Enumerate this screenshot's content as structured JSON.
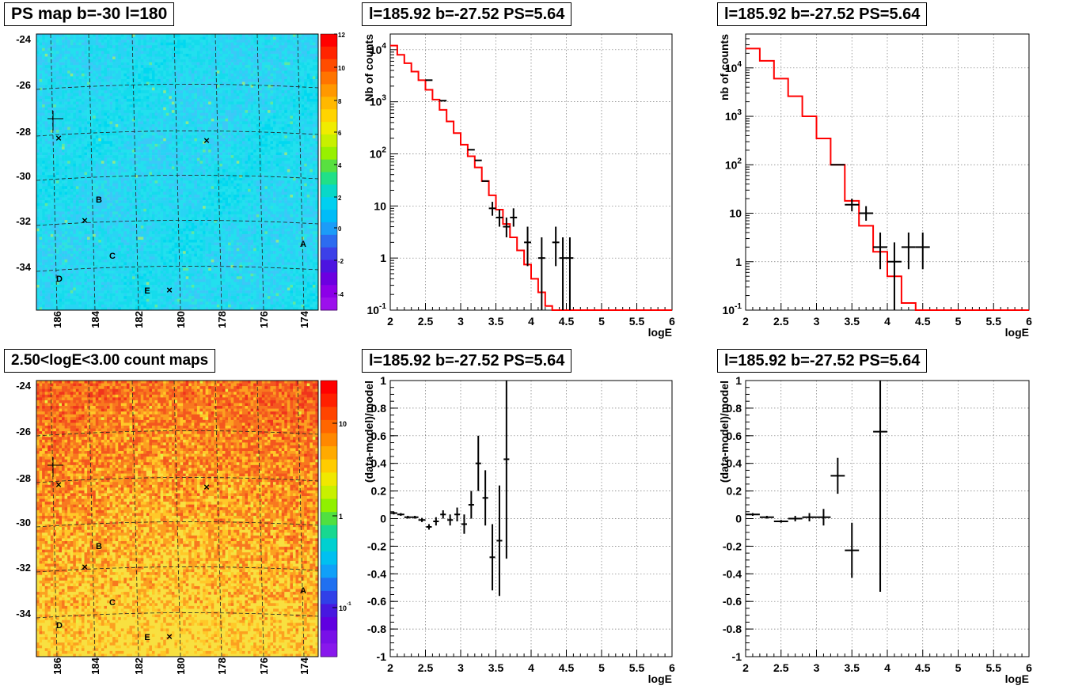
{
  "pads": [
    {
      "id": "map1",
      "title": "PS map b=-30 l=180"
    },
    {
      "id": "spec1",
      "title": "l=185.92 b=-27.52 PS=5.64"
    },
    {
      "id": "spec2",
      "title": "l=185.92 b=-27.52 PS=5.64"
    },
    {
      "id": "map2",
      "title": "2.50<logE<3.00 count maps"
    },
    {
      "id": "res1",
      "title": "l=185.92 b=-27.52 PS=5.64"
    },
    {
      "id": "res2",
      "title": "l=185.92 b=-27.52 PS=5.64"
    }
  ],
  "colors": {
    "model_line": "#ff0000",
    "data": "#000000",
    "grid": "#777777",
    "map1_base": "#22e0ee",
    "map2_base": "#f46a1e"
  },
  "chart_data": [
    {
      "type": "heatmap",
      "id": "map1",
      "title": "PS map b=-30 l=180",
      "x_ticks": [
        "186",
        "184",
        "182",
        "180",
        "178",
        "176",
        "174"
      ],
      "y_ticks": [
        "-24",
        "-26",
        "-28",
        "-30",
        "-32",
        "-34"
      ],
      "colorbar": {
        "scale": "linear",
        "ticks": [
          "12",
          "10",
          "8",
          "6",
          "4",
          "2",
          "0",
          "-2",
          "-4"
        ],
        "range": [
          -5,
          12
        ]
      },
      "sources": [
        "A",
        "B",
        "C",
        "D",
        "E"
      ],
      "dominant_value_range": [
        0,
        2
      ]
    },
    {
      "type": "line",
      "id": "spec1",
      "title": "l=185.92 b=-27.52 PS=5.64",
      "xlabel": "logE",
      "ylabel": "Nb of counts",
      "xlim": [
        2,
        6
      ],
      "ylim": [
        0.1,
        20000
      ],
      "yscale": "log",
      "x_ticks": [
        "2",
        "2.5",
        "3",
        "3.5",
        "4",
        "4.5",
        "5",
        "5.5",
        "6"
      ],
      "y_ticks": [
        "10^4",
        "10^3",
        "10^2",
        "10",
        "1",
        "10^-1"
      ],
      "grid": true,
      "model_step_x": [
        2.0,
        2.1,
        2.2,
        2.3,
        2.4,
        2.5,
        2.6,
        2.7,
        2.8,
        2.9,
        3.0,
        3.1,
        3.2,
        3.3,
        3.4,
        3.5,
        3.6,
        3.7,
        3.8,
        3.9,
        4.0,
        4.1,
        4.2,
        4.3,
        4.4,
        4.5,
        4.6,
        4.7,
        4.8,
        4.9,
        5.0,
        5.1,
        5.2,
        5.3,
        5.4,
        5.5,
        5.6,
        5.7,
        5.8,
        5.9
      ],
      "model_step_y": [
        12000,
        8000,
        5500,
        3800,
        2600,
        1700,
        1100,
        700,
        420,
        250,
        150,
        90,
        55,
        30,
        16,
        8.5,
        4.5,
        2.5,
        1.4,
        0.75,
        0.4,
        0.22,
        0.12,
        0.1,
        0.1,
        0.1,
        0.1,
        0.1,
        0.1,
        0.1,
        0.1,
        0.1,
        0.1,
        0.1,
        0.1,
        0.1,
        0.1,
        0.1,
        0.1,
        0.1
      ],
      "data_points": [
        {
          "x": 2.55,
          "y": 2600,
          "xerr": 0.05
        },
        {
          "x": 2.75,
          "y": 1050,
          "xerr": 0.05
        },
        {
          "x": 3.15,
          "y": 120,
          "xerr": 0.05
        },
        {
          "x": 3.25,
          "y": 75,
          "xerr": 0.05
        },
        {
          "x": 3.35,
          "y": 30,
          "xerr": 0.05
        },
        {
          "x": 3.45,
          "y": 9,
          "xerr": 0.05,
          "ylo": 6.5,
          "yhi": 12
        },
        {
          "x": 3.55,
          "y": 6,
          "xerr": 0.05,
          "ylo": 4,
          "yhi": 8.5
        },
        {
          "x": 3.65,
          "y": 4,
          "xerr": 0.05,
          "ylo": 2.5,
          "yhi": 6
        },
        {
          "x": 3.75,
          "y": 6,
          "xerr": 0.05,
          "ylo": 4,
          "yhi": 9
        },
        {
          "x": 3.95,
          "y": 2,
          "xerr": 0.05,
          "ylo": 0.7,
          "yhi": 4
        },
        {
          "x": 4.15,
          "y": 1,
          "xerr": 0.05,
          "ylo": 0.1,
          "yhi": 2.5
        },
        {
          "x": 4.35,
          "y": 2,
          "xerr": 0.05,
          "ylo": 0.7,
          "yhi": 4
        },
        {
          "x": 4.45,
          "y": 1,
          "xerr": 0.05,
          "ylo": 0.1,
          "yhi": 2.5
        },
        {
          "x": 4.55,
          "y": 1,
          "xerr": 0.05,
          "ylo": 0.1,
          "yhi": 2.5
        }
      ]
    },
    {
      "type": "line",
      "id": "spec2",
      "title": "l=185.92 b=-27.52 PS=5.64",
      "xlabel": "logE",
      "ylabel": "nb of counts",
      "xlim": [
        2,
        6
      ],
      "ylim": [
        0.1,
        50000
      ],
      "yscale": "log",
      "x_ticks": [
        "2",
        "2.5",
        "3",
        "3.5",
        "4",
        "4.5",
        "5",
        "5.5",
        "6"
      ],
      "y_ticks": [
        "10^4",
        "10^3",
        "10^2",
        "10",
        "1",
        "10^-1"
      ],
      "grid": true,
      "model_step_x": [
        2.0,
        2.2,
        2.4,
        2.6,
        2.8,
        3.0,
        3.2,
        3.4,
        3.6,
        3.8,
        4.0,
        4.2,
        4.4,
        4.6,
        4.8,
        5.0,
        5.2,
        5.4,
        5.6,
        5.8
      ],
      "model_step_y": [
        25000,
        14000,
        6000,
        2600,
        1000,
        350,
        100,
        18,
        5.5,
        1.6,
        0.5,
        0.14,
        0.1,
        0.1,
        0.1,
        0.1,
        0.1,
        0.1,
        0.1,
        0.1
      ],
      "data_points": [
        {
          "x": 3.3,
          "y": 100,
          "xerr": 0.1
        },
        {
          "x": 3.5,
          "y": 15,
          "xerr": 0.1,
          "ylo": 11,
          "yhi": 20
        },
        {
          "x": 3.7,
          "y": 10,
          "xerr": 0.1,
          "ylo": 7,
          "yhi": 14
        },
        {
          "x": 3.9,
          "y": 2,
          "xerr": 0.1,
          "ylo": 0.7,
          "yhi": 4
        },
        {
          "x": 4.1,
          "y": 1,
          "xerr": 0.1,
          "ylo": 0.1,
          "yhi": 2.5
        },
        {
          "x": 4.3,
          "y": 2,
          "xerr": 0.1,
          "ylo": 0.7,
          "yhi": 4
        },
        {
          "x": 4.5,
          "y": 2,
          "xerr": 0.1,
          "ylo": 0.7,
          "yhi": 4
        }
      ]
    },
    {
      "type": "heatmap",
      "id": "map2",
      "title": "2.50<logE<3.00 count maps",
      "x_ticks": [
        "186",
        "184",
        "182",
        "180",
        "178",
        "176",
        "174"
      ],
      "y_ticks": [
        "-24",
        "-26",
        "-28",
        "-30",
        "-32",
        "-34"
      ],
      "colorbar": {
        "scale": "log",
        "ticks": [
          "10",
          "1",
          "10^-1"
        ]
      },
      "sources": [
        "A",
        "B",
        "C",
        "D",
        "E"
      ]
    },
    {
      "type": "scatter",
      "id": "res1",
      "title": "l=185.92 b=-27.52 PS=5.64",
      "xlabel": "logE",
      "ylabel": "(data-model)/model",
      "xlim": [
        2,
        6
      ],
      "ylim": [
        -1,
        1
      ],
      "x_ticks": [
        "2",
        "2.5",
        "3",
        "3.5",
        "4",
        "4.5",
        "5",
        "5.5",
        "6"
      ],
      "y_ticks": [
        "1",
        "0.8",
        "0.6",
        "0.4",
        "0.2",
        "0",
        "-0.2",
        "-0.4",
        "-0.6",
        "-0.8",
        "-1"
      ],
      "grid": true,
      "data_points": [
        {
          "x": 2.05,
          "y": 0.04,
          "xerr": 0.05,
          "yerr": 0.01
        },
        {
          "x": 2.15,
          "y": 0.03,
          "xerr": 0.05,
          "yerr": 0.01
        },
        {
          "x": 2.25,
          "y": 0.01,
          "xerr": 0.05,
          "yerr": 0.01
        },
        {
          "x": 2.35,
          "y": 0.01,
          "xerr": 0.05,
          "yerr": 0.01
        },
        {
          "x": 2.45,
          "y": -0.01,
          "xerr": 0.05,
          "yerr": 0.015
        },
        {
          "x": 2.55,
          "y": -0.06,
          "xerr": 0.04,
          "yerr": 0.02
        },
        {
          "x": 2.65,
          "y": -0.02,
          "xerr": 0.04,
          "yerr": 0.03
        },
        {
          "x": 2.75,
          "y": 0.03,
          "xerr": 0.04,
          "yerr": 0.03
        },
        {
          "x": 2.85,
          "y": -0.01,
          "xerr": 0.04,
          "yerr": 0.04
        },
        {
          "x": 2.95,
          "y": 0.03,
          "xerr": 0.04,
          "yerr": 0.05
        },
        {
          "x": 3.05,
          "y": -0.04,
          "xerr": 0.04,
          "yerr": 0.07
        },
        {
          "x": 3.15,
          "y": 0.1,
          "xerr": 0.04,
          "yerr": 0.1
        },
        {
          "x": 3.25,
          "y": 0.4,
          "xerr": 0.04,
          "yerr": 0.2
        },
        {
          "x": 3.35,
          "y": 0.15,
          "xerr": 0.04,
          "yerr": 0.2
        },
        {
          "x": 3.45,
          "y": -0.28,
          "xerr": 0.04,
          "yerr": 0.24
        },
        {
          "x": 3.55,
          "y": -0.16,
          "xerr": 0.04,
          "yerr": 0.4
        },
        {
          "x": 3.65,
          "y": 0.43,
          "xerr": 0.04,
          "ylo": -0.29,
          "yhi": 1.0
        }
      ]
    },
    {
      "type": "scatter",
      "id": "res2",
      "title": "l=185.92 b=-27.52 PS=5.64",
      "xlabel": "logE",
      "ylabel": "(data-model)/model",
      "xlim": [
        2,
        6
      ],
      "ylim": [
        -1,
        1
      ],
      "x_ticks": [
        "2",
        "2.5",
        "3",
        "3.5",
        "4",
        "4.5",
        "5",
        "5.5",
        "6"
      ],
      "y_ticks": [
        "1",
        "0.8",
        "0.6",
        "0.4",
        "0.2",
        "0",
        "-0.2",
        "-0.4",
        "-0.6",
        "-0.8",
        "-1"
      ],
      "grid": true,
      "data_points": [
        {
          "x": 2.1,
          "y": 0.03,
          "xerr": 0.1,
          "yerr": 0.01
        },
        {
          "x": 2.3,
          "y": 0.01,
          "xerr": 0.1,
          "yerr": 0.01
        },
        {
          "x": 2.5,
          "y": -0.02,
          "xerr": 0.1,
          "yerr": 0.01
        },
        {
          "x": 2.7,
          "y": 0.0,
          "xerr": 0.1,
          "yerr": 0.02
        },
        {
          "x": 2.9,
          "y": 0.01,
          "xerr": 0.1,
          "yerr": 0.03
        },
        {
          "x": 3.1,
          "y": 0.01,
          "xerr": 0.1,
          "yerr": 0.06
        },
        {
          "x": 3.3,
          "y": 0.31,
          "xerr": 0.1,
          "yerr": 0.13
        },
        {
          "x": 3.5,
          "y": -0.23,
          "xerr": 0.1,
          "yerr": 0.2
        },
        {
          "x": 3.9,
          "y": 0.63,
          "xerr": 0.1,
          "ylo": -0.53,
          "yhi": 1.0
        }
      ]
    }
  ]
}
